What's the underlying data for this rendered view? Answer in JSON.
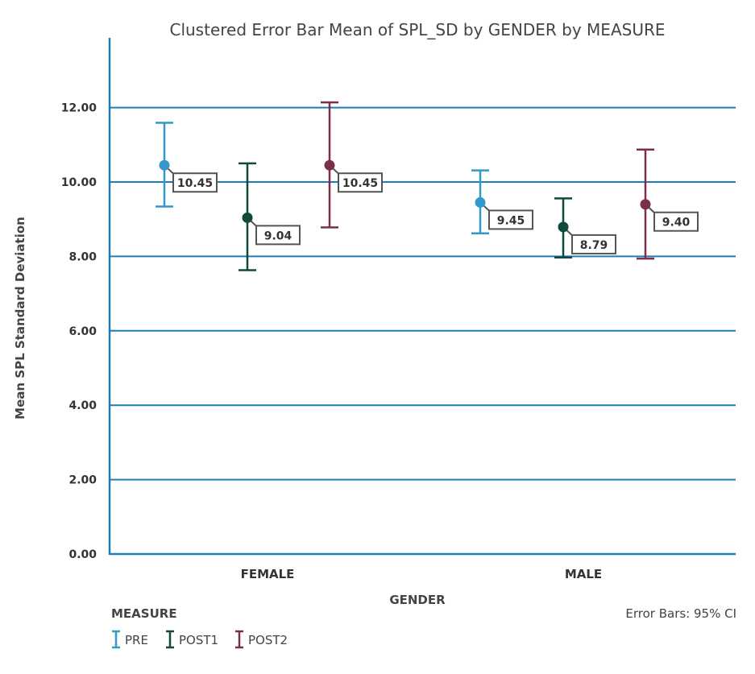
{
  "chart_data": {
    "type": "errorbar",
    "title": "Clustered Error Bar Mean of SPL_SD by GENDER by MEASURE",
    "xlabel": "GENDER",
    "ylabel": "Mean SPL Standard Deviation",
    "categories": [
      "FEMALE",
      "MALE"
    ],
    "ylim": [
      0,
      13.5
    ],
    "yticks": [
      "0.00",
      "2.00",
      "4.00",
      "6.00",
      "8.00",
      "10.00",
      "12.00"
    ],
    "ytick_values": [
      0,
      2,
      4,
      6,
      8,
      10,
      12
    ],
    "grid": true,
    "legend_title": "MEASURE",
    "legend_position": "bottom-left",
    "note": "Error Bars: 95% CI",
    "series": [
      {
        "name": "PRE",
        "color": "#3399cc",
        "means": [
          10.45,
          9.45
        ],
        "labels": [
          "10.45",
          "9.45"
        ],
        "lower": [
          9.34,
          8.62
        ],
        "upper": [
          11.59,
          10.31
        ]
      },
      {
        "name": "POST1",
        "color": "#0f4a3c",
        "means": [
          9.04,
          8.79
        ],
        "labels": [
          "9.04",
          "8.79"
        ],
        "lower": [
          7.63,
          7.97
        ],
        "upper": [
          10.5,
          9.56
        ]
      },
      {
        "name": "POST2",
        "color": "#7a3048",
        "means": [
          10.45,
          9.4
        ],
        "labels": [
          "10.45",
          "9.40"
        ],
        "lower": [
          8.78,
          7.94
        ],
        "upper": [
          12.14,
          10.87
        ]
      }
    ]
  }
}
